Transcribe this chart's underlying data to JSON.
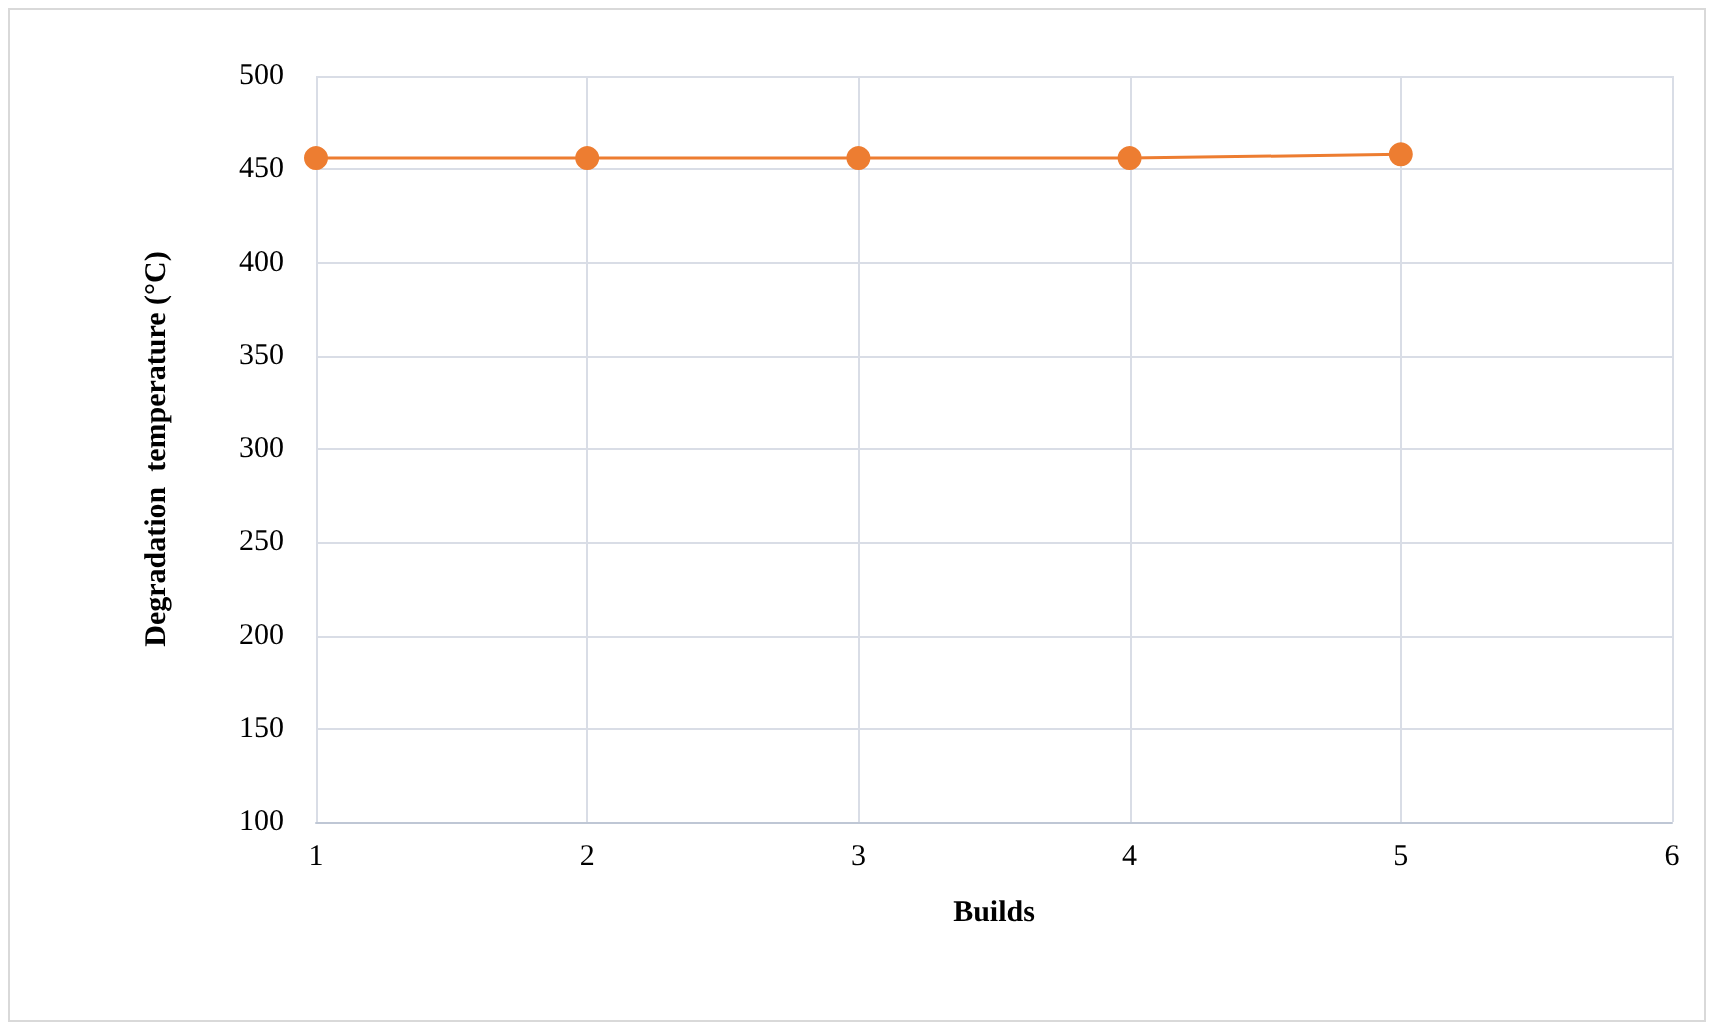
{
  "chart_data": {
    "type": "line",
    "xlabel": "Builds",
    "ylabel": "Degradation  temperature (°C)",
    "x": [
      1,
      2,
      3,
      4,
      5
    ],
    "series": [
      {
        "color": "#ed7d31",
        "values": [
          456,
          456,
          456,
          456,
          458
        ]
      }
    ],
    "xlim": [
      1,
      6
    ],
    "xticks": [
      1,
      2,
      3,
      4,
      5,
      6
    ],
    "ylim": [
      100,
      500
    ],
    "yticks": [
      100,
      150,
      200,
      250,
      300,
      350,
      400,
      450,
      500
    ],
    "grid": true,
    "marker": "circle",
    "line_style": "solid"
  }
}
